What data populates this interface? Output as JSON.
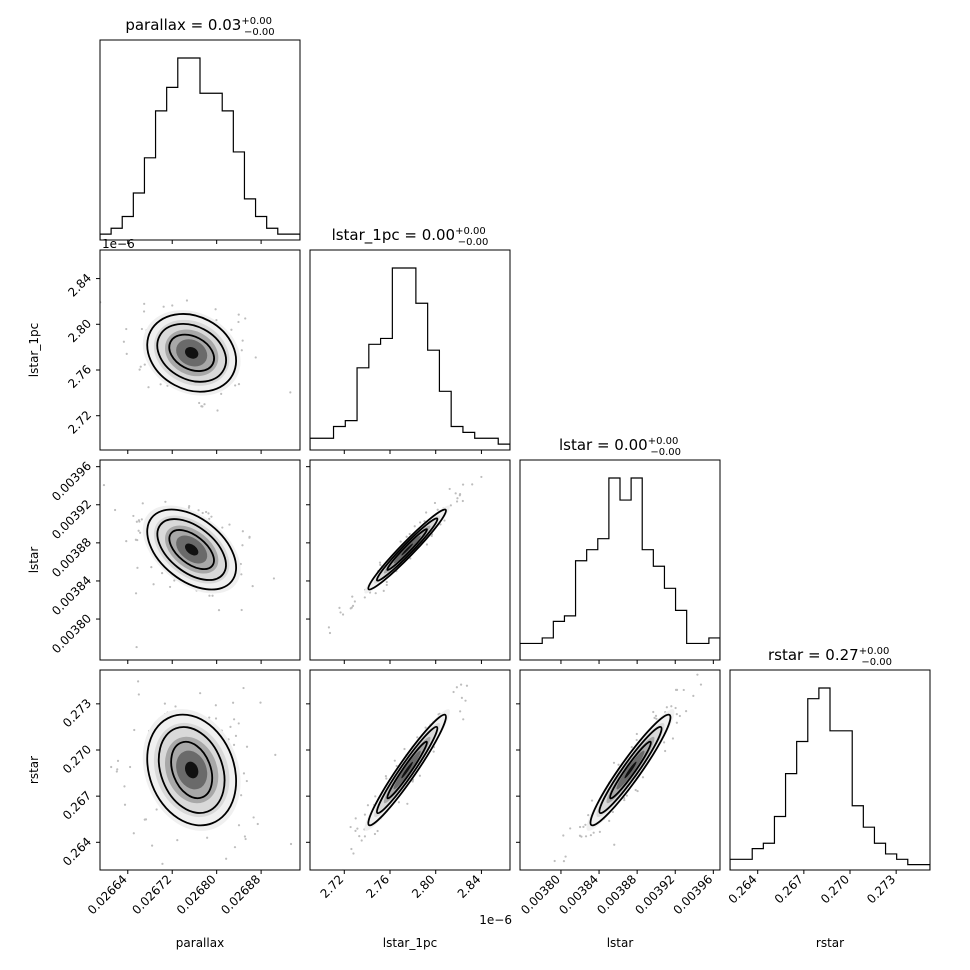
{
  "chart_data": {
    "type": "corner",
    "params": [
      {
        "name": "parallax",
        "title": "parallax",
        "value": "0.03",
        "plus": "+0.00",
        "minus": "−0.00",
        "range": [
          0.02659,
          0.02695
        ],
        "ticks": [
          0.02664,
          0.02672,
          0.0268,
          0.02688
        ],
        "tick_labels": [
          "0.02664",
          "0.02672",
          "0.02680",
          "0.02688"
        ],
        "center": 0.026755,
        "sd": 4e-05,
        "offset": ""
      },
      {
        "name": "lstar_1pc",
        "title": "lstar_1pc",
        "value": "0.00",
        "plus": "+0.00",
        "minus": "−0.00",
        "range": [
          2.69,
          2.865
        ],
        "ticks": [
          2.72,
          2.76,
          2.8,
          2.84
        ],
        "tick_labels": [
          "2.72",
          "2.76",
          "2.80",
          "2.84"
        ],
        "center": 2.775,
        "sd": 0.017,
        "offset": "1e−6"
      },
      {
        "name": "lstar",
        "title": "lstar",
        "value": "0.00",
        "plus": "+0.00",
        "minus": "−0.00",
        "range": [
          0.003757,
          0.003967
        ],
        "ticks": [
          0.0038,
          0.00384,
          0.00388,
          0.00392,
          0.00396
        ],
        "tick_labels": [
          "0.00380",
          "0.00384",
          "0.00388",
          "0.00392",
          "0.00396"
        ],
        "center": 0.003873,
        "sd": 2.1e-05,
        "offset": ""
      },
      {
        "name": "rstar",
        "title": "rstar",
        "value": "0.27",
        "plus": "+0.00",
        "minus": "−0.00",
        "range": [
          0.2622,
          0.2752
        ],
        "ticks": [
          0.264,
          0.267,
          0.27,
          0.273
        ],
        "tick_labels": [
          "0.264",
          "0.267",
          "0.270",
          "0.273"
        ],
        "center": 0.2687,
        "sd": 0.0018,
        "offset": ""
      }
    ],
    "histograms": [
      [
        1,
        2,
        4,
        8,
        14,
        22,
        26,
        31,
        31,
        25,
        25,
        22,
        15,
        7,
        4,
        2,
        1,
        1
      ],
      [
        2,
        2,
        4,
        5,
        14,
        18,
        19,
        31,
        31,
        25,
        17,
        10,
        4,
        3,
        2,
        2,
        1
      ],
      [
        3,
        3,
        4,
        7,
        8,
        18,
        20,
        22,
        33,
        29,
        33,
        20,
        17,
        13,
        9,
        3,
        3,
        4
      ],
      [
        2,
        2,
        4,
        5,
        10,
        18,
        24,
        32,
        34,
        26,
        26,
        12,
        8,
        5,
        3,
        2,
        1,
        1
      ]
    ],
    "correlations": {
      "1-0": -0.2,
      "2-0": -0.45,
      "2-1": 0.97,
      "3-0": -0.2,
      "3-1": 0.96,
      "3-2": 0.95
    }
  }
}
